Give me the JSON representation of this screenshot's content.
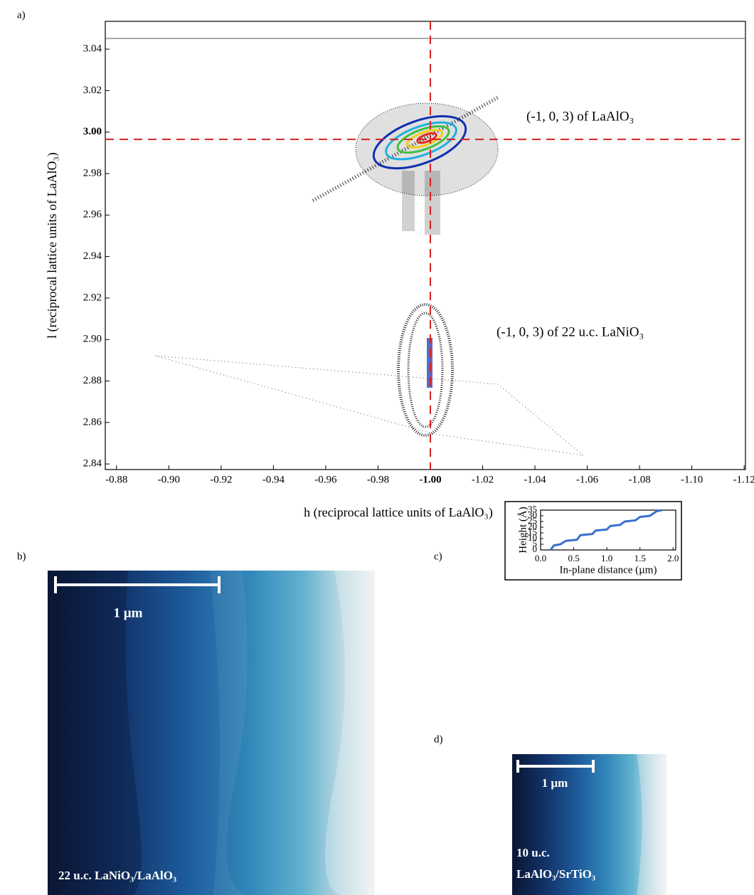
{
  "panel_labels": [
    "a)",
    "b)",
    "c)",
    "d)"
  ],
  "chart_data": [
    {
      "type": "contour",
      "x_label": "h (reciprocal lattice units of LaAlO₃)",
      "y_label": "l (reciprocal lattice units of LaAlO₃)",
      "xlim": [
        -0.8757,
        -1.1205
      ],
      "ylim": [
        2.8373,
        3.0534
      ],
      "xticks": [
        -0.88,
        {
          "value": -0.9,
          "label": "-0.90"
        },
        -0.92,
        -0.94,
        -0.96,
        -0.98,
        {
          "value": -1.0,
          "label": "-1.00",
          "bold": true
        },
        -1.02,
        -1.04,
        -1.06,
        -1.08,
        {
          "value": -1.1,
          "label": "-1.10"
        },
        -1.12
      ],
      "yticks": [
        2.84,
        2.86,
        2.88,
        {
          "value": 2.9,
          "label": "2.90"
        },
        2.92,
        2.94,
        2.96,
        2.98,
        {
          "value": 3.0,
          "label": "3.00",
          "bold": true
        },
        3.02,
        3.04
      ],
      "reference_lines": {
        "h": -1.0,
        "l": 2.9965,
        "color": "#d62020"
      },
      "annotations": [
        "(-1, 0, 3) of LaAlO₃",
        "(-1, 0, 3) of 22 u.c. LaNiO₃"
      ]
    },
    {
      "type": "line",
      "x_label": "In-plane distance (µm)",
      "y_label": "Height (Å)",
      "xlim": [
        0,
        2.04
      ],
      "ylim": [
        0,
        35
      ],
      "xticks": [
        {
          "value": 0,
          "label": "0.0"
        },
        0.5,
        {
          "value": 1,
          "label": "1.0"
        },
        1.5,
        {
          "value": 2,
          "label": "2.0"
        }
      ],
      "yticks": [
        0,
        5,
        10,
        15,
        20,
        25,
        30,
        35
      ],
      "color": "#3a6fcf",
      "x": [
        0.15,
        0.2,
        0.3,
        0.38,
        0.55,
        0.6,
        0.78,
        0.83,
        1.0,
        1.05,
        1.2,
        1.27,
        1.43,
        1.5,
        1.65,
        1.75,
        1.83
      ],
      "values": [
        0,
        4,
        5,
        8,
        9,
        13,
        14,
        17,
        18,
        21,
        22,
        25,
        26,
        29,
        30,
        34,
        35
      ]
    }
  ],
  "images": [
    {
      "scale_bar": "1 µm",
      "caption": [
        "22 u.c. LaNiO₃/LaAlO₃"
      ]
    },
    {
      "scale_bar": "1 µm",
      "caption": [
        "10 u.c.",
        "LaAlO₃/SrTiO₃"
      ]
    }
  ]
}
